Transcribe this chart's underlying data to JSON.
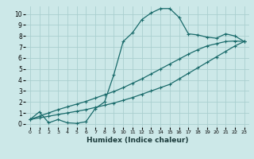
{
  "xlabel": "Humidex (Indice chaleur)",
  "bg_color": "#cce8e8",
  "line_color": "#1a6b6b",
  "grid_color": "#aacfcf",
  "xlim": [
    -0.5,
    23.5
  ],
  "ylim": [
    -0.3,
    10.7
  ],
  "xticks": [
    0,
    1,
    2,
    3,
    4,
    5,
    6,
    7,
    8,
    9,
    10,
    11,
    12,
    13,
    14,
    15,
    16,
    17,
    18,
    19,
    20,
    21,
    22,
    23
  ],
  "yticks": [
    0,
    1,
    2,
    3,
    4,
    5,
    6,
    7,
    8,
    9,
    10
  ],
  "curve1_x": [
    0,
    1,
    2,
    3,
    4,
    5,
    6,
    7,
    8,
    9,
    10,
    11,
    12,
    13,
    14,
    15,
    16,
    17,
    18,
    19,
    20,
    21,
    22,
    23
  ],
  "curve1_y": [
    0.4,
    1.1,
    0.1,
    0.4,
    0.1,
    0.05,
    0.2,
    1.4,
    2.0,
    4.5,
    7.5,
    8.3,
    9.5,
    10.1,
    10.5,
    10.5,
    9.7,
    8.2,
    8.1,
    7.9,
    7.8,
    8.2,
    8.0,
    7.5
  ],
  "curve2_x": [
    0,
    1,
    2,
    3,
    4,
    5,
    6,
    7,
    8,
    9,
    10,
    11,
    12,
    13,
    14,
    15,
    16,
    17,
    18,
    19,
    20,
    21,
    22,
    23
  ],
  "curve2_y": [
    0.4,
    0.55,
    0.7,
    0.85,
    1.0,
    1.15,
    1.3,
    1.5,
    1.7,
    1.9,
    2.15,
    2.4,
    2.7,
    3.0,
    3.3,
    3.6,
    4.1,
    4.6,
    5.1,
    5.6,
    6.1,
    6.6,
    7.1,
    7.5
  ],
  "curve3_x": [
    0,
    1,
    2,
    3,
    4,
    5,
    6,
    7,
    8,
    9,
    10,
    11,
    12,
    13,
    14,
    15,
    16,
    17,
    18,
    19,
    20,
    21,
    22,
    23
  ],
  "curve3_y": [
    0.4,
    0.7,
    1.0,
    1.3,
    1.55,
    1.8,
    2.05,
    2.35,
    2.65,
    2.95,
    3.3,
    3.7,
    4.1,
    4.55,
    5.0,
    5.45,
    5.9,
    6.35,
    6.75,
    7.1,
    7.3,
    7.5,
    7.55,
    7.5
  ],
  "marker": "+",
  "markersize": 3.5,
  "linewidth": 0.9
}
